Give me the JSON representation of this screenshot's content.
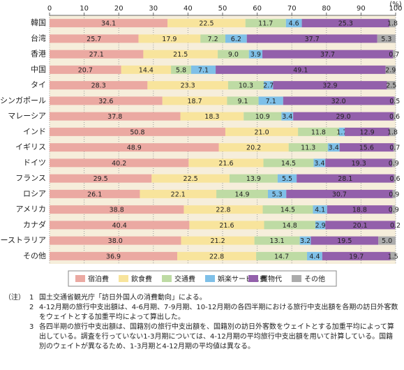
{
  "chart_data": {
    "type": "stacked-barh",
    "unit": "(%)",
    "categories": [
      "韓国",
      "台湾",
      "香港",
      "中国",
      "タイ",
      "シンガポール",
      "マレーシア",
      "インド",
      "イギリス",
      "ドイツ",
      "フランス",
      "ロシア",
      "アメリカ",
      "カナダ",
      "オーストラリア",
      "その他"
    ],
    "series": [
      {
        "name": "宿泊費",
        "color": "#eba9a2",
        "values": [
          34.1,
          25.7,
          27.1,
          20.7,
          28.3,
          32.6,
          37.8,
          50.8,
          48.9,
          40.2,
          29.5,
          26.1,
          38.8,
          40.4,
          38.0,
          36.9
        ],
        "value_labels": [
          "34.1",
          "25.7",
          "27.1",
          "20.7",
          "28.3",
          "32.6",
          "37.8",
          "50.8",
          "48.9",
          "40.2",
          "29.5",
          "26.1",
          "38.8",
          "40.4",
          "38.0",
          "36.9"
        ]
      },
      {
        "name": "飲食費",
        "color": "#f8e49c",
        "values": [
          22.5,
          17.9,
          21.5,
          14.4,
          23.3,
          18.7,
          18.3,
          21.0,
          20.2,
          21.6,
          22.5,
          22.1,
          22.8,
          21.6,
          21.2,
          22.8
        ],
        "value_labels": [
          "22.5",
          "17.9",
          "21.5",
          "14.4",
          "23.3",
          "18.7",
          "18.3",
          "21.0",
          "20.2",
          "21.6",
          "22.5",
          "22.1",
          "22.8",
          "21.6",
          "21.2",
          "22.8"
        ]
      },
      {
        "name": "交通費",
        "color": "#bedba4",
        "values": [
          11.7,
          7.2,
          9.0,
          5.8,
          10.3,
          9.1,
          10.9,
          11.8,
          11.3,
          14.5,
          13.9,
          14.9,
          14.5,
          14.8,
          13.1,
          14.7
        ],
        "value_labels": [
          "11.7",
          "7.2",
          "9.0",
          "5.8",
          "10.3",
          "9.1",
          "10.9",
          "11.8",
          "11.3",
          "14.5",
          "13.9",
          "14.9",
          "14.5",
          "14.8",
          "13.1",
          "14.7"
        ]
      },
      {
        "name": "娯楽サービス費",
        "color": "#7fc0e8",
        "values": [
          4.6,
          6.2,
          3.9,
          7.1,
          2.7,
          7.1,
          3.4,
          1.7,
          3.4,
          3.4,
          5.5,
          5.3,
          4.1,
          2.9,
          3.2,
          4.4
        ],
        "value_labels": [
          "4.6",
          "6.2",
          "3.9",
          "7.1",
          "2.7",
          "7.1",
          "3.4",
          "1.7",
          "3.4",
          "3.4",
          "5.5",
          "5.3",
          "4.1",
          "2.9",
          "3.2",
          "4.4"
        ]
      },
      {
        "name": "買物代",
        "color": "#9360ab",
        "values": [
          25.3,
          37.7,
          37.7,
          49.1,
          32.9,
          32.0,
          29.0,
          12.9,
          15.6,
          19.3,
          28.1,
          30.7,
          18.8,
          20.1,
          19.5,
          19.7
        ],
        "value_labels": [
          "25.3",
          "37.7",
          "37.7",
          "49.1",
          "32.9",
          "32.0",
          "29.0",
          "12.9",
          "15.6",
          "19.3",
          "28.1",
          "30.7",
          "18.8",
          "20.1",
          "19.5",
          "19.7"
        ]
      },
      {
        "name": "その他",
        "color": "#ababab",
        "values": [
          1.8,
          5.3,
          0.7,
          2.9,
          2.5,
          0.5,
          0.6,
          1.8,
          0.7,
          0.9,
          0.6,
          0.9,
          0.9,
          0.2,
          5.0,
          1.5
        ],
        "value_labels": [
          "1.8",
          "5.3",
          "0.7",
          "2.9",
          "2.5",
          "0.5",
          "0.6",
          "1.8",
          "0.7",
          "0.9",
          "0.6",
          "0.9",
          "0.9",
          "0.2",
          "5.0",
          "1.5"
        ]
      }
    ],
    "xlim": [
      0,
      100
    ],
    "xticks": [
      0,
      10,
      20,
      30,
      40,
      50,
      60,
      70,
      80,
      90,
      100
    ],
    "grid": true,
    "legend": "bottom"
  },
  "notes": {
    "label": "（注）",
    "items": [
      {
        "num": "1",
        "text": "国土交通省観光庁「訪日外国人の消費動向」による。"
      },
      {
        "num": "2",
        "text": "4-12月期の旅行中支出額は、4-6月期、7-9月期、10-12月期の各四半期における旅行中支出額を各期の訪日外客数をウェイトとする加重平均によって算出した。"
      },
      {
        "num": "3",
        "text": "各四半期の旅行中支出額は、国籍別の旅行中支出額を、国籍別の訪日外客数をウェイトとする加重平均によって算出している。調査を行っていない1-3月期については、4-12月期の平均旅行中支出額を用いて計算している。国籍別のウェイトが異なるため、1-3月期と4-12月期の平均値は異なる。"
      }
    ]
  }
}
